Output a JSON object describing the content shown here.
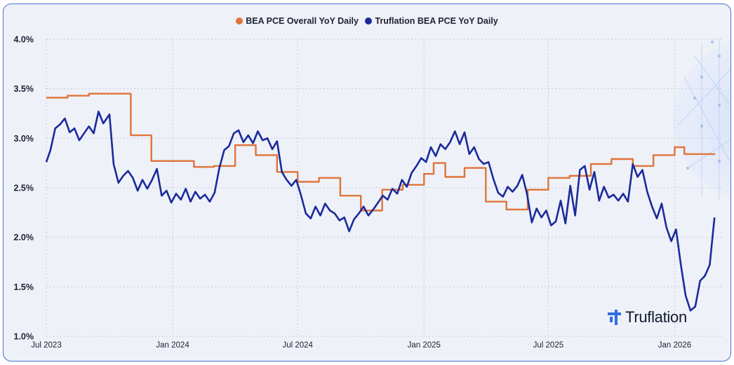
{
  "brand": {
    "name": "Truflation",
    "accent": "#2f6fe0"
  },
  "chart_data": {
    "type": "line",
    "title": "",
    "xlabel": "",
    "ylabel": "",
    "x_ticks": [
      "Jul 2023",
      "Jan 2024",
      "Jul 2024",
      "Jan 2025",
      "Jul 2025",
      "Jan 2026"
    ],
    "y_ticks": [
      "1.0%",
      "1.5%",
      "2.0%",
      "2.5%",
      "3.0%",
      "3.5%",
      "4.0%"
    ],
    "ylim": [
      1.0,
      4.0
    ],
    "xlim": [
      "2023-07-01",
      "2026-03-10"
    ],
    "grid": true,
    "legend_position": "top-center",
    "series": [
      {
        "name": "BEA PCE Overall YoY Daily",
        "color": "#e0733a",
        "step": true,
        "points": [
          [
            "2023-07-01",
            3.41
          ],
          [
            "2023-08-01",
            3.43
          ],
          [
            "2023-09-01",
            3.45
          ],
          [
            "2023-10-01",
            3.45
          ],
          [
            "2023-11-01",
            3.03
          ],
          [
            "2023-12-01",
            2.77
          ],
          [
            "2024-01-01",
            2.77
          ],
          [
            "2024-02-01",
            2.71
          ],
          [
            "2024-03-01",
            2.72
          ],
          [
            "2024-04-01",
            2.93
          ],
          [
            "2024-05-01",
            2.83
          ],
          [
            "2024-06-01",
            2.66
          ],
          [
            "2024-07-01",
            2.56
          ],
          [
            "2024-08-01",
            2.6
          ],
          [
            "2024-09-01",
            2.42
          ],
          [
            "2024-10-01",
            2.27
          ],
          [
            "2024-11-01",
            2.48
          ],
          [
            "2024-12-01",
            2.53
          ],
          [
            "2025-01-01",
            2.64
          ],
          [
            "2025-01-15",
            2.75
          ],
          [
            "2025-02-01",
            2.61
          ],
          [
            "2025-03-01",
            2.7
          ],
          [
            "2025-04-01",
            2.36
          ],
          [
            "2025-05-01",
            2.28
          ],
          [
            "2025-06-01",
            2.48
          ],
          [
            "2025-07-01",
            2.6
          ],
          [
            "2025-08-01",
            2.62
          ],
          [
            "2025-09-01",
            2.74
          ],
          [
            "2025-10-01",
            2.79
          ],
          [
            "2025-11-01",
            2.72
          ],
          [
            "2025-12-01",
            2.83
          ],
          [
            "2026-01-01",
            2.91
          ],
          [
            "2026-01-15",
            2.84
          ],
          [
            "2026-03-01",
            2.84
          ]
        ]
      },
      {
        "name": "Truflation BEA PCE YoY Daily",
        "color": "#1b2a9b",
        "step": false,
        "points": [
          [
            "2023-07-01",
            2.76
          ],
          [
            "2023-07-07",
            2.88
          ],
          [
            "2023-07-14",
            3.1
          ],
          [
            "2023-07-21",
            3.14
          ],
          [
            "2023-07-28",
            3.2
          ],
          [
            "2023-08-04",
            3.06
          ],
          [
            "2023-08-11",
            3.1
          ],
          [
            "2023-08-18",
            2.98
          ],
          [
            "2023-08-25",
            3.05
          ],
          [
            "2023-09-01",
            3.12
          ],
          [
            "2023-09-08",
            3.05
          ],
          [
            "2023-09-15",
            3.27
          ],
          [
            "2023-09-22",
            3.15
          ],
          [
            "2023-10-01",
            3.24
          ],
          [
            "2023-10-07",
            2.74
          ],
          [
            "2023-10-14",
            2.55
          ],
          [
            "2023-10-21",
            2.62
          ],
          [
            "2023-10-28",
            2.67
          ],
          [
            "2023-11-04",
            2.6
          ],
          [
            "2023-11-11",
            2.47
          ],
          [
            "2023-11-18",
            2.58
          ],
          [
            "2023-11-25",
            2.49
          ],
          [
            "2023-12-02",
            2.58
          ],
          [
            "2023-12-09",
            2.69
          ],
          [
            "2023-12-16",
            2.42
          ],
          [
            "2023-12-23",
            2.47
          ],
          [
            "2023-12-30",
            2.35
          ],
          [
            "2024-01-06",
            2.44
          ],
          [
            "2024-01-13",
            2.38
          ],
          [
            "2024-01-20",
            2.49
          ],
          [
            "2024-01-27",
            2.36
          ],
          [
            "2024-02-03",
            2.46
          ],
          [
            "2024-02-10",
            2.39
          ],
          [
            "2024-02-17",
            2.43
          ],
          [
            "2024-02-24",
            2.36
          ],
          [
            "2024-03-02",
            2.45
          ],
          [
            "2024-03-09",
            2.7
          ],
          [
            "2024-03-16",
            2.88
          ],
          [
            "2024-03-23",
            2.92
          ],
          [
            "2024-03-30",
            3.05
          ],
          [
            "2024-04-06",
            3.08
          ],
          [
            "2024-04-13",
            2.96
          ],
          [
            "2024-04-20",
            3.03
          ],
          [
            "2024-04-27",
            2.95
          ],
          [
            "2024-05-04",
            3.07
          ],
          [
            "2024-05-11",
            2.98
          ],
          [
            "2024-05-18",
            3.0
          ],
          [
            "2024-05-25",
            2.89
          ],
          [
            "2024-06-01",
            2.97
          ],
          [
            "2024-06-08",
            2.66
          ],
          [
            "2024-06-15",
            2.58
          ],
          [
            "2024-06-22",
            2.52
          ],
          [
            "2024-06-29",
            2.58
          ],
          [
            "2024-07-06",
            2.42
          ],
          [
            "2024-07-13",
            2.24
          ],
          [
            "2024-07-20",
            2.19
          ],
          [
            "2024-07-27",
            2.31
          ],
          [
            "2024-08-03",
            2.22
          ],
          [
            "2024-08-10",
            2.34
          ],
          [
            "2024-08-17",
            2.27
          ],
          [
            "2024-08-24",
            2.24
          ],
          [
            "2024-08-31",
            2.17
          ],
          [
            "2024-09-07",
            2.2
          ],
          [
            "2024-09-14",
            2.06
          ],
          [
            "2024-09-21",
            2.18
          ],
          [
            "2024-09-28",
            2.24
          ],
          [
            "2024-10-05",
            2.31
          ],
          [
            "2024-10-12",
            2.22
          ],
          [
            "2024-10-19",
            2.28
          ],
          [
            "2024-10-26",
            2.35
          ],
          [
            "2024-11-02",
            2.42
          ],
          [
            "2024-11-09",
            2.38
          ],
          [
            "2024-11-16",
            2.49
          ],
          [
            "2024-11-23",
            2.44
          ],
          [
            "2024-11-30",
            2.58
          ],
          [
            "2024-12-07",
            2.51
          ],
          [
            "2024-12-14",
            2.65
          ],
          [
            "2024-12-21",
            2.72
          ],
          [
            "2024-12-28",
            2.8
          ],
          [
            "2025-01-04",
            2.76
          ],
          [
            "2025-01-11",
            2.91
          ],
          [
            "2025-01-18",
            2.82
          ],
          [
            "2025-01-25",
            2.94
          ],
          [
            "2025-02-01",
            2.89
          ],
          [
            "2025-02-08",
            2.96
          ],
          [
            "2025-02-15",
            3.07
          ],
          [
            "2025-02-22",
            2.94
          ],
          [
            "2025-03-01",
            3.06
          ],
          [
            "2025-03-08",
            2.84
          ],
          [
            "2025-03-15",
            2.91
          ],
          [
            "2025-03-22",
            2.79
          ],
          [
            "2025-03-29",
            2.74
          ],
          [
            "2025-04-05",
            2.76
          ],
          [
            "2025-04-12",
            2.59
          ],
          [
            "2025-04-19",
            2.45
          ],
          [
            "2025-04-26",
            2.41
          ],
          [
            "2025-05-03",
            2.51
          ],
          [
            "2025-05-10",
            2.46
          ],
          [
            "2025-05-17",
            2.52
          ],
          [
            "2025-05-24",
            2.63
          ],
          [
            "2025-05-31",
            2.44
          ],
          [
            "2025-06-07",
            2.15
          ],
          [
            "2025-06-14",
            2.29
          ],
          [
            "2025-06-21",
            2.2
          ],
          [
            "2025-06-28",
            2.27
          ],
          [
            "2025-07-05",
            2.12
          ],
          [
            "2025-07-12",
            2.16
          ],
          [
            "2025-07-19",
            2.37
          ],
          [
            "2025-07-26",
            2.14
          ],
          [
            "2025-08-02",
            2.52
          ],
          [
            "2025-08-09",
            2.22
          ],
          [
            "2025-08-16",
            2.68
          ],
          [
            "2025-08-23",
            2.72
          ],
          [
            "2025-08-30",
            2.48
          ],
          [
            "2025-09-06",
            2.66
          ],
          [
            "2025-09-13",
            2.37
          ],
          [
            "2025-09-20",
            2.51
          ],
          [
            "2025-09-27",
            2.4
          ],
          [
            "2025-10-04",
            2.43
          ],
          [
            "2025-10-11",
            2.37
          ],
          [
            "2025-10-18",
            2.44
          ],
          [
            "2025-10-25",
            2.36
          ],
          [
            "2025-11-01",
            2.74
          ],
          [
            "2025-11-08",
            2.61
          ],
          [
            "2025-11-15",
            2.68
          ],
          [
            "2025-11-22",
            2.46
          ],
          [
            "2025-11-29",
            2.31
          ],
          [
            "2025-12-06",
            2.19
          ],
          [
            "2025-12-13",
            2.34
          ],
          [
            "2025-12-20",
            2.1
          ],
          [
            "2025-12-27",
            1.96
          ],
          [
            "2026-01-03",
            2.08
          ],
          [
            "2026-01-10",
            1.72
          ],
          [
            "2026-01-17",
            1.41
          ],
          [
            "2026-01-24",
            1.26
          ],
          [
            "2026-01-31",
            1.3
          ],
          [
            "2026-02-07",
            1.56
          ],
          [
            "2026-02-14",
            1.61
          ],
          [
            "2026-02-21",
            1.72
          ],
          [
            "2026-02-28",
            2.2
          ]
        ]
      }
    ]
  }
}
